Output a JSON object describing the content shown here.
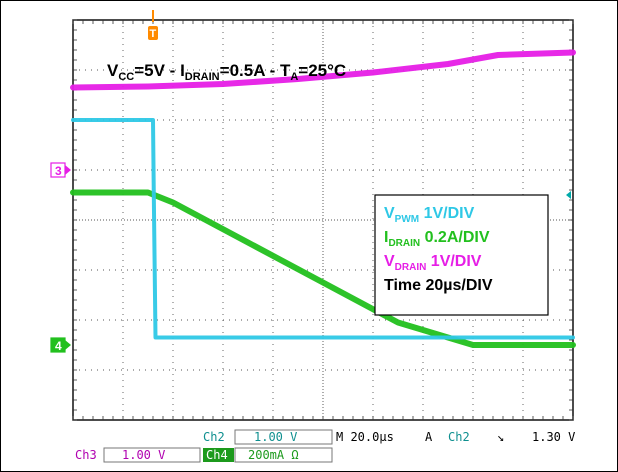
{
  "chart_data": {
    "type": "line",
    "title": {
      "parts": [
        {
          "t": "V"
        },
        {
          "t": "CC",
          "sub": true
        },
        {
          "t": "=5V - I"
        },
        {
          "t": "DRAIN",
          "sub": true
        },
        {
          "t": "=0.5A - T"
        },
        {
          "t": "A",
          "sub": true
        },
        {
          "t": "=25°C"
        }
      ]
    },
    "x_unit": "µs",
    "y_unit": "div",
    "xlim": [
      0,
      200
    ],
    "ylim": [
      -4,
      4
    ],
    "grid": true,
    "legend_placement": "center-right",
    "legend": [
      {
        "color": "#2ec8e6",
        "parts": [
          {
            "t": "V"
          },
          {
            "t": "PWM",
            "sub": true
          },
          {
            "t": " 1V/DIV"
          }
        ]
      },
      {
        "color": "#22c01e",
        "parts": [
          {
            "t": "I"
          },
          {
            "t": "DRAIN",
            "sub": true
          },
          {
            "t": " 0.2A/DIV"
          }
        ]
      },
      {
        "color": "#e61ee6",
        "parts": [
          {
            "t": "V"
          },
          {
            "t": "DRAIN",
            "sub": true
          },
          {
            "t": " 1V/DIV"
          }
        ]
      },
      {
        "color": "#000000",
        "parts": [
          {
            "t": "Time 20µs/DIV"
          }
        ]
      }
    ],
    "series": [
      {
        "channel": "Ch2",
        "color": "#2ec8e6",
        "x": [
          0,
          32,
          32.3,
          33,
          200
        ],
        "y": [
          2.0,
          2.0,
          0.5,
          -2.35,
          -2.35
        ]
      },
      {
        "channel": "Ch4",
        "color": "#22c01e",
        "x": [
          0,
          30,
          40,
          70,
          100,
          130,
          160,
          200
        ],
        "y": [
          0.55,
          0.55,
          0.35,
          -0.45,
          -1.25,
          -2.05,
          -2.5,
          -2.5
        ]
      },
      {
        "channel": "Ch3",
        "color": "#e61ee6",
        "x": [
          0,
          30,
          60,
          90,
          120,
          150,
          170,
          200
        ],
        "y": [
          2.65,
          2.67,
          2.72,
          2.82,
          2.95,
          3.12,
          3.3,
          3.35
        ]
      }
    ],
    "markers": [
      {
        "label": "3",
        "color": "#e61ee6",
        "y": 1.0
      },
      {
        "label": "4",
        "color": "#22c01e",
        "y": -2.5
      }
    ],
    "trigger_marker": {
      "label": "T",
      "color": "#ff8a00"
    },
    "trigger_level_color": "#00aaaa"
  },
  "readout": {
    "ch2_label": "Ch2",
    "ch2_value": "1.00 V",
    "timebase": "M 20.0µs",
    "trigger_mode": "A",
    "trigger_channel": "Ch2",
    "trigger_edge": "↘",
    "trigger_level": "1.30 V",
    "ch3_label": "Ch3",
    "ch3_value": "1.00 V",
    "ch4_label": "Ch4",
    "ch4_value": "200mA Ω"
  }
}
